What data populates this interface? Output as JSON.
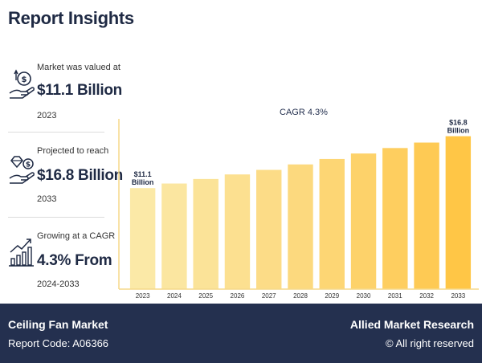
{
  "header": {
    "title": "Report Insights"
  },
  "stats": [
    {
      "label": "Market was valued at",
      "value": "$11.1 Billion",
      "year": "2023",
      "icon": "money-hand-icon"
    },
    {
      "label": "Projected to reach",
      "value": "$16.8 Billion",
      "year": "2033",
      "icon": "diamond-coin-hand-icon"
    },
    {
      "label": "Growing at a CAGR",
      "value": "4.3% From",
      "year": "2024-2033",
      "icon": "growth-chart-icon"
    }
  ],
  "chart_data": {
    "type": "bar",
    "annotation": "CAGR 4.3%",
    "categories": [
      "2023",
      "2024",
      "2025",
      "2026",
      "2027",
      "2028",
      "2029",
      "2030",
      "2031",
      "2032",
      "2033"
    ],
    "values": [
      11.1,
      11.6,
      12.1,
      12.6,
      13.1,
      13.7,
      14.3,
      14.9,
      15.5,
      16.1,
      16.8
    ],
    "data_labels": [
      {
        "index": 0,
        "line1": "$11.1",
        "line2": "Billion"
      },
      {
        "index": 10,
        "line1": "$16.8",
        "line2": "Billion"
      }
    ],
    "ylim": [
      0,
      18
    ],
    "grid": false,
    "colors": [
      "#fbe9a7",
      "#fbe6a0",
      "#fbe398",
      "#fce090",
      "#fcdc87",
      "#fcd97e",
      "#fdd674",
      "#fdd26a",
      "#fece5f",
      "#feca54",
      "#ffc646"
    ],
    "axis_color": "#f5d98a"
  },
  "footer": {
    "market": "Ceiling Fan Market",
    "report_code": "Report Code: A06366",
    "brand": "Allied Market Research",
    "rights": "© All right reserved"
  }
}
